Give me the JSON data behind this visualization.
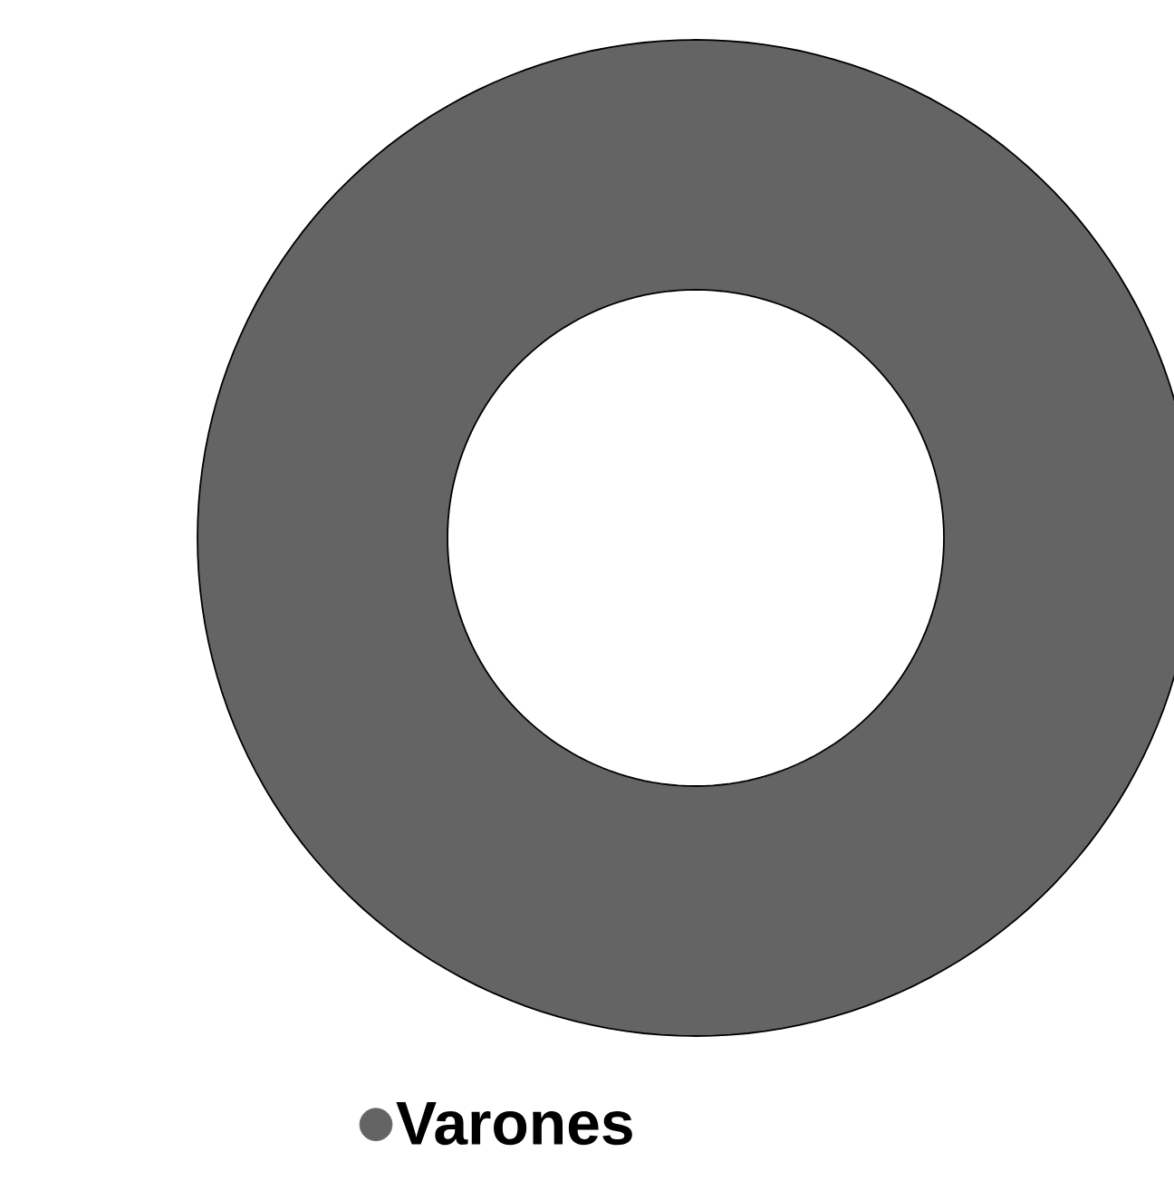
{
  "chart_data": {
    "type": "donut",
    "categories": [
      "Varones"
    ],
    "values": [
      100
    ],
    "colors": [
      "#646464"
    ],
    "legend": "bottom"
  }
}
